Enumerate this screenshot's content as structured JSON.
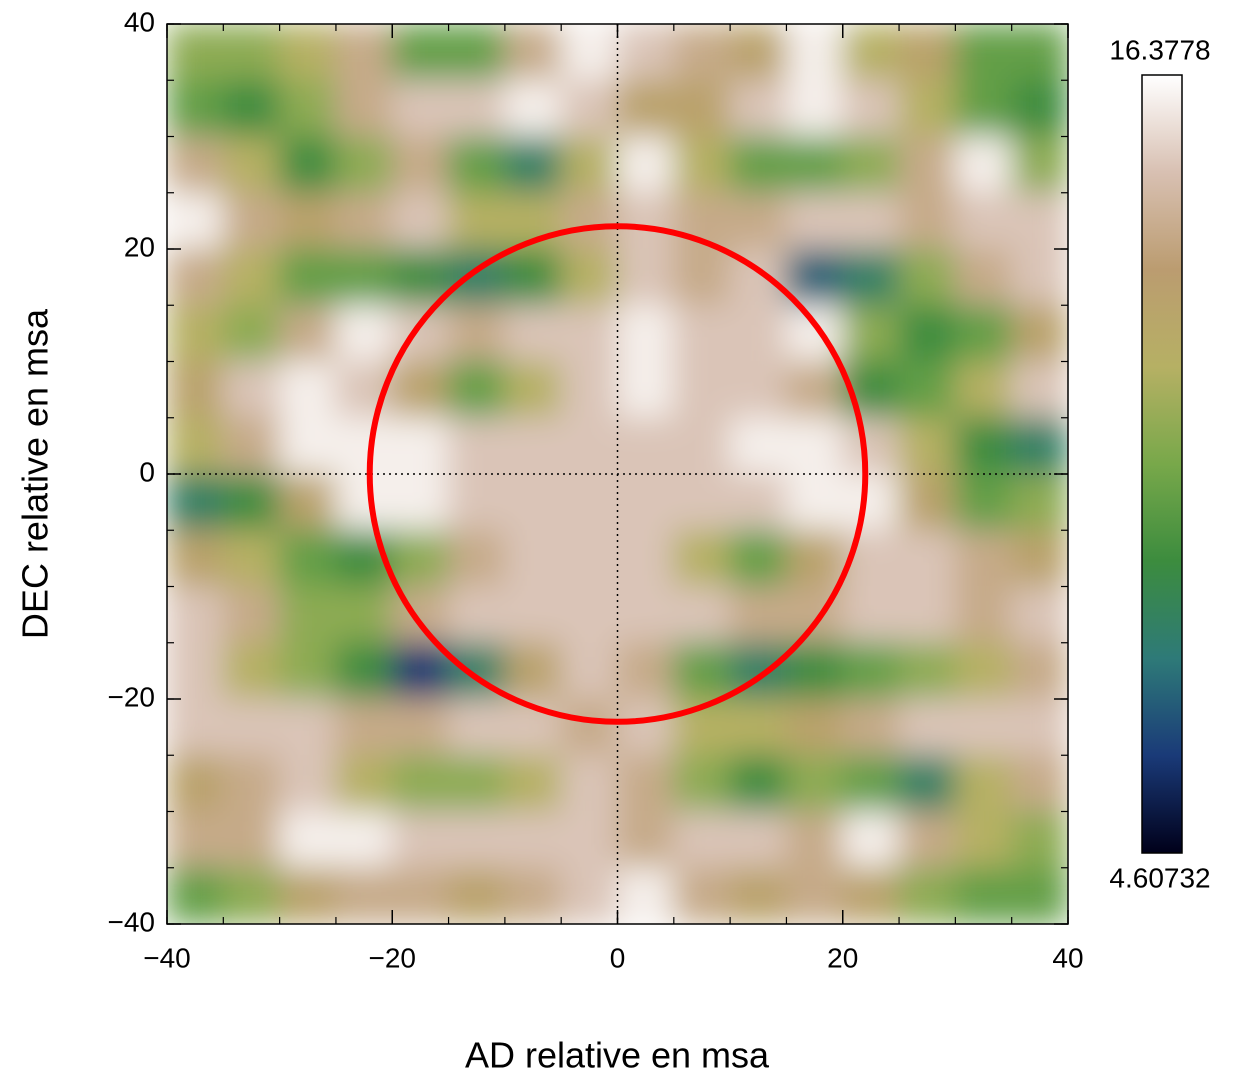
{
  "chart_data": {
    "type": "heatmap",
    "x_label": "AD relative en msa",
    "y_label": "DEC relative en msa",
    "xlim": [
      -40,
      40
    ],
    "ylim": [
      -40,
      40
    ],
    "xticks": [
      {
        "value": -40,
        "label": "−40"
      },
      {
        "value": -20,
        "label": "−20"
      },
      0,
      20,
      40
    ],
    "yticks": [
      {
        "value": -40,
        "label": "−40"
      },
      {
        "value": -20,
        "label": "−20"
      },
      0,
      20,
      40
    ],
    "minor_step": 5,
    "x": [
      -37.5,
      -32.5,
      -27.5,
      -22.5,
      -17.5,
      -12.5,
      -7.5,
      -2.5,
      2.5,
      7.5,
      12.5,
      17.5,
      22.5,
      27.5,
      32.5,
      37.5
    ],
    "y": [
      37.5,
      32.5,
      27.5,
      22.5,
      17.5,
      12.5,
      7.5,
      2.5,
      -2.5,
      -7.5,
      -12.5,
      -17.5,
      -22.5,
      -27.5,
      -32.5,
      -37.5
    ],
    "z": [
      [
        11,
        11,
        12,
        14,
        10,
        10,
        14,
        16,
        15,
        14,
        13,
        16,
        12,
        13,
        10,
        10
      ],
      [
        10,
        9,
        11,
        14,
        15,
        15,
        16,
        15,
        13,
        13,
        15,
        16,
        15,
        12,
        10,
        9
      ],
      [
        14,
        12,
        9,
        11,
        14,
        10,
        8,
        12,
        16,
        12,
        10,
        10,
        11,
        14,
        16,
        11
      ],
      [
        16,
        14,
        13,
        14,
        15,
        12,
        12,
        14,
        15,
        14,
        14,
        15,
        15,
        14,
        15,
        15
      ],
      [
        14,
        12,
        10,
        10,
        9,
        8,
        9,
        12,
        15,
        14,
        15,
        7,
        8,
        11,
        14,
        15
      ],
      [
        12,
        11,
        14,
        16,
        15,
        14,
        15,
        15,
        16,
        15,
        15,
        16,
        11,
        9,
        10,
        13
      ],
      [
        13,
        15,
        16,
        15,
        13,
        10,
        12,
        15,
        16,
        15,
        15,
        14,
        9,
        10,
        12,
        15
      ],
      [
        12,
        14,
        16,
        16,
        16,
        15,
        15,
        15,
        15,
        15,
        16,
        16,
        15,
        12,
        9,
        8
      ],
      [
        8,
        9,
        13,
        16,
        16,
        15,
        15,
        15,
        15,
        15,
        15,
        16,
        16,
        13,
        10,
        11
      ],
      [
        13,
        12,
        10,
        9,
        11,
        14,
        15,
        15,
        15,
        12,
        10,
        13,
        15,
        15,
        14,
        13
      ],
      [
        15,
        14,
        11,
        11,
        14,
        15,
        15,
        15,
        15,
        15,
        14,
        14,
        15,
        15,
        14,
        15
      ],
      [
        15,
        12,
        11,
        9,
        6,
        8,
        13,
        15,
        14,
        10,
        8,
        9,
        10,
        11,
        12,
        14
      ],
      [
        15,
        15,
        15,
        14,
        14,
        15,
        15,
        14,
        15,
        12,
        12,
        13,
        14,
        15,
        15,
        15
      ],
      [
        13,
        14,
        15,
        12,
        11,
        11,
        12,
        15,
        14,
        11,
        9,
        11,
        10,
        8,
        12,
        14
      ],
      [
        14,
        14,
        16,
        16,
        15,
        15,
        15,
        15,
        14,
        15,
        15,
        14,
        16,
        14,
        12,
        11
      ],
      [
        10,
        11,
        13,
        14,
        14,
        13,
        14,
        15,
        16,
        14,
        13,
        14,
        13,
        11,
        10,
        10
      ]
    ],
    "zlim": [
      4.60732,
      16.3778
    ],
    "colormap": [
      "#00001a",
      "#1a3a78",
      "#2e7a78",
      "#3c8c3e",
      "#78a84a",
      "#b6b064",
      "#bb9c70",
      "#d8c0b2",
      "#ffffff"
    ],
    "crosshair": {
      "x": 0,
      "y": 0
    },
    "circle": {
      "cx": 0,
      "cy": 0,
      "r": 22,
      "color": "#ff0000"
    }
  }
}
